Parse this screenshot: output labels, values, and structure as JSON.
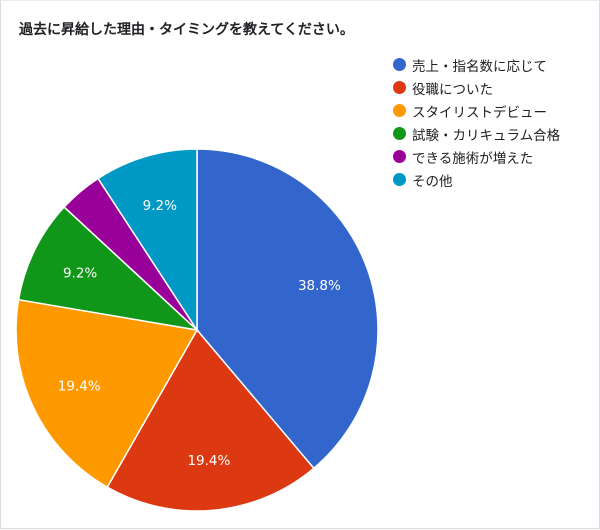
{
  "chart_data": {
    "type": "pie",
    "title": "過去に昇給した理由・タイミングを教えてください。",
    "categories": [
      "売上・指名数に応じて",
      "役職についた",
      "スタイリストデビュー",
      "試験・カリキュラム合格",
      "できる施術が増えた",
      "その他"
    ],
    "values": [
      38.8,
      19.4,
      19.4,
      9.2,
      3.9,
      9.2
    ],
    "data_labels": [
      "38.8%",
      "19.4%",
      "19.4%",
      "9.2%",
      "",
      "9.2%"
    ],
    "colors": [
      "#3366cc",
      "#dc3912",
      "#ff9900",
      "#109618",
      "#990099",
      "#0099c6"
    ],
    "legend_position": "right"
  }
}
